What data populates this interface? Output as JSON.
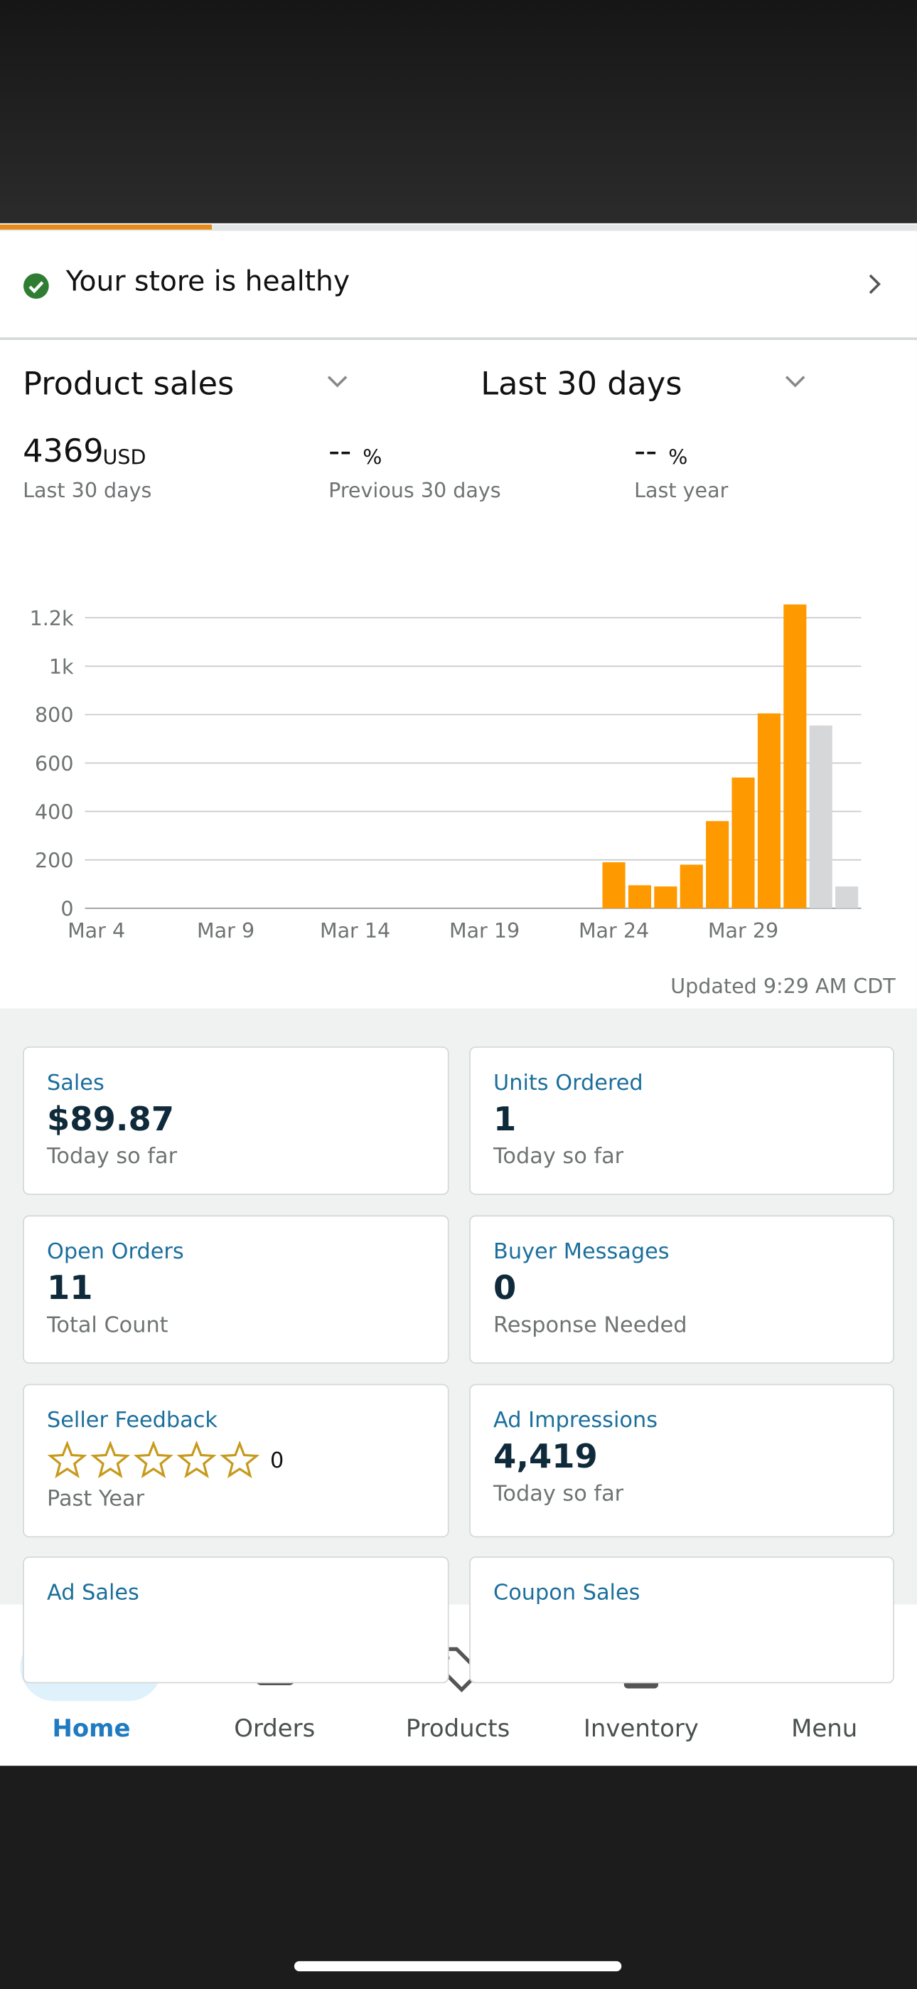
{
  "health": {
    "text": "Your store is healthy"
  },
  "selectors": {
    "metric": "Product sales",
    "range": "Last 30 days"
  },
  "summary": [
    {
      "value": "4369",
      "unit": "USD",
      "label": "Last 30 days"
    },
    {
      "value": "--",
      "unit": "%",
      "label": "Previous 30 days"
    },
    {
      "value": "--",
      "unit": "%",
      "label": "Last year"
    }
  ],
  "chart_data": {
    "type": "bar",
    "categories": [
      "Mar 4",
      null,
      null,
      null,
      null,
      "Mar 9",
      null,
      null,
      null,
      null,
      "Mar 14",
      null,
      null,
      null,
      null,
      "Mar 19",
      null,
      null,
      null,
      null,
      "Mar 24",
      null,
      null,
      null,
      null,
      "Mar 29",
      null,
      null,
      null,
      null
    ],
    "values": [
      0,
      0,
      0,
      0,
      0,
      0,
      0,
      0,
      0,
      0,
      0,
      0,
      0,
      0,
      0,
      0,
      0,
      0,
      0,
      0,
      190,
      95,
      90,
      180,
      360,
      540,
      805,
      1255,
      755,
      90
    ],
    "colors": [
      "#ff9900",
      "#ff9900",
      "#ff9900",
      "#ff9900",
      "#ff9900",
      "#ff9900",
      "#ff9900",
      "#ff9900",
      "#ff9900",
      "#ff9900",
      "#ff9900",
      "#ff9900",
      "#ff9900",
      "#ff9900",
      "#ff9900",
      "#ff9900",
      "#ff9900",
      "#ff9900",
      "#ff9900",
      "#ff9900",
      "#ff9900",
      "#ff9900",
      "#ff9900",
      "#ff9900",
      "#ff9900",
      "#ff9900",
      "#ff9900",
      "#ff9900",
      "#d5d7d8",
      "#d5d7d8"
    ],
    "ylim": [
      0,
      1300
    ],
    "yticks": [
      0,
      200,
      400,
      600,
      800,
      {
        "value": 1000,
        "label": "1k"
      },
      {
        "value": 1200,
        "label": "1.2k"
      }
    ],
    "grid": true
  },
  "updated": "Updated 9:29 AM CDT",
  "cards": [
    {
      "title": "Sales",
      "value": "$89.87",
      "subtitle": "Today so far"
    },
    {
      "title": "Units Ordered",
      "value": "1",
      "subtitle": "Today so far"
    },
    {
      "title": "Open Orders",
      "value": "11",
      "subtitle": "Total Count"
    },
    {
      "title": "Buyer Messages",
      "value": "0",
      "subtitle": "Response Needed"
    },
    {
      "title": "Seller Feedback",
      "value": "0",
      "subtitle": "Past Year"
    },
    {
      "title": "Ad Impressions",
      "value": "4,419",
      "subtitle": "Today so far"
    },
    {
      "title": "Ad Sales"
    },
    {
      "title": "Coupon Sales"
    }
  ],
  "nav": [
    "Home",
    "Orders",
    "Products",
    "Inventory",
    "Menu"
  ]
}
